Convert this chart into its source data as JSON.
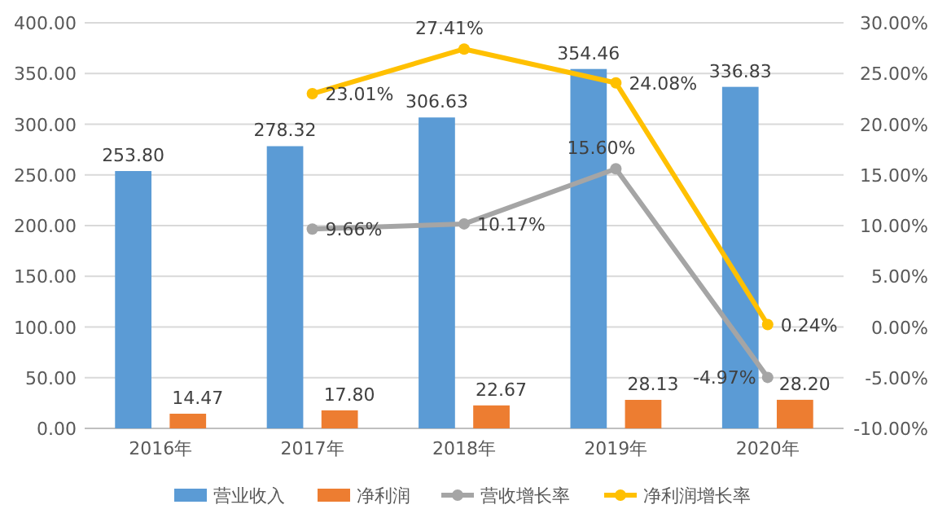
{
  "chart_data": {
    "type": "bar",
    "categories": [
      "2016年",
      "2017年",
      "2018年",
      "2019年",
      "2020年"
    ],
    "series": [
      {
        "name": "营业收入",
        "color": "#5b9bd5",
        "values": [
          253.8,
          278.32,
          306.63,
          354.46,
          336.83
        ],
        "value_labels": [
          "253.80",
          "278.32",
          "306.63",
          "354.46",
          "336.83"
        ]
      },
      {
        "name": "净利润",
        "color": "#ed7d31",
        "values": [
          14.47,
          17.8,
          22.67,
          28.13,
          28.2
        ],
        "value_labels": [
          "14.47",
          "17.80",
          "22.67",
          "28.13",
          "28.20"
        ]
      },
      {
        "name": "营收增长率",
        "type": "line",
        "axis": "y2",
        "color": "#a5a5a5",
        "marker": "circle",
        "values": [
          null,
          9.66,
          10.17,
          15.6,
          -4.97
        ],
        "value_labels": [
          null,
          "9.66%",
          "10.17%",
          "15.60%",
          "-4.97%"
        ]
      },
      {
        "name": "净利润增长率",
        "type": "line",
        "axis": "y2",
        "color": "#ffc000",
        "marker": "circle",
        "values": [
          null,
          23.01,
          27.41,
          24.08,
          0.24
        ],
        "value_labels": [
          null,
          "23.01%",
          "27.41%",
          "24.08%",
          "0.24%"
        ]
      }
    ],
    "ylim": [
      0,
      400
    ],
    "yticks": [
      {
        "value": 0,
        "label": "0.00"
      },
      {
        "value": 50,
        "label": "50.00"
      },
      {
        "value": 100,
        "label": "100.00"
      },
      {
        "value": 150,
        "label": "150.00"
      },
      {
        "value": 200,
        "label": "200.00"
      },
      {
        "value": 250,
        "label": "250.00"
      },
      {
        "value": 300,
        "label": "300.00"
      },
      {
        "value": 350,
        "label": "350.00"
      },
      {
        "value": 400,
        "label": "400.00"
      }
    ],
    "y2lim": [
      -10,
      30
    ],
    "y2ticks": [
      {
        "value": -10,
        "label": "-10.00%"
      },
      {
        "value": -5,
        "label": "-5.00%"
      },
      {
        "value": 0,
        "label": "0.00%"
      },
      {
        "value": 5,
        "label": "5.00%"
      },
      {
        "value": 10,
        "label": "10.00%"
      },
      {
        "value": 15,
        "label": "15.00%"
      },
      {
        "value": 20,
        "label": "20.00%"
      },
      {
        "value": 25,
        "label": "25.00%"
      },
      {
        "value": 30,
        "label": "30.00%"
      }
    ],
    "grid": "y",
    "legend": "bottom"
  }
}
